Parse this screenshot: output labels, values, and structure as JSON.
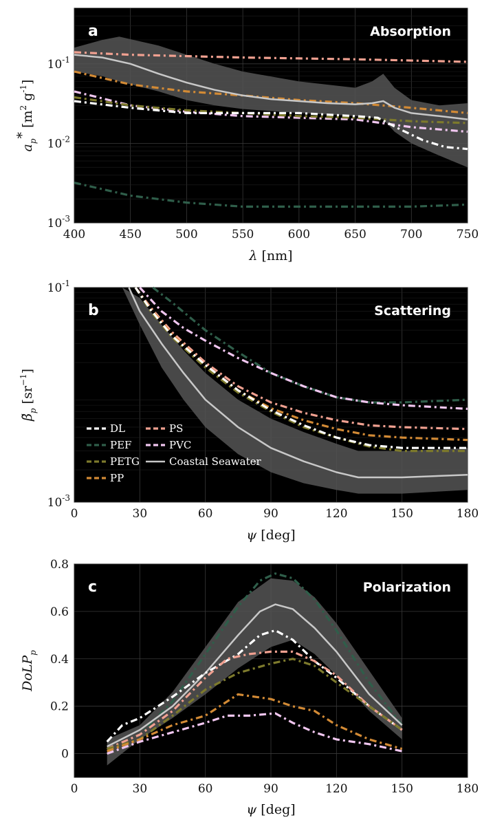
{
  "colors": {
    "DL": "#ffffff",
    "PEF": "#2f5e4a",
    "PETG": "#7d7a2c",
    "PP": "#d28a35",
    "PS": "#f0a090",
    "PVC": "#f0c6ef",
    "Coastal Seawater": "#c8c8c8",
    "band": "#555555"
  },
  "chart_data": [
    {
      "panel": "a",
      "type": "line",
      "title": "Absorption",
      "xlabel": "λ [nm]",
      "ylabel": "a*p [m2 g-1]",
      "yscale": "log",
      "xlim": [
        400,
        750
      ],
      "ylim": [
        0.001,
        0.5
      ],
      "xticks": [
        "400",
        "450",
        "500",
        "550",
        "600",
        "650",
        "700",
        "750"
      ],
      "yticks": [
        "10-3",
        "10-2",
        "10-1"
      ],
      "series": [
        {
          "name": "PS",
          "x": [
            400,
            450,
            500,
            550,
            600,
            650,
            700,
            750
          ],
          "y": [
            0.14,
            0.13,
            0.125,
            0.12,
            0.117,
            0.114,
            0.11,
            0.106
          ]
        },
        {
          "name": "PP",
          "x": [
            400,
            450,
            500,
            550,
            600,
            650,
            700,
            750
          ],
          "y": [
            0.08,
            0.055,
            0.045,
            0.04,
            0.035,
            0.032,
            0.028,
            0.024
          ]
        },
        {
          "name": "PVC",
          "x": [
            400,
            450,
            500,
            550,
            600,
            650,
            700,
            750
          ],
          "y": [
            0.045,
            0.03,
            0.025,
            0.022,
            0.021,
            0.02,
            0.016,
            0.014
          ]
        },
        {
          "name": "PETG",
          "x": [
            400,
            450,
            500,
            550,
            600,
            650,
            700,
            750
          ],
          "y": [
            0.038,
            0.03,
            0.026,
            0.024,
            0.022,
            0.021,
            0.019,
            0.018
          ]
        },
        {
          "name": "DL",
          "x": [
            400,
            450,
            500,
            550,
            600,
            650,
            670,
            690,
            710,
            730,
            750
          ],
          "y": [
            0.034,
            0.028,
            0.024,
            0.024,
            0.024,
            0.022,
            0.021,
            0.015,
            0.011,
            0.009,
            0.0085
          ]
        },
        {
          "name": "PEF",
          "x": [
            400,
            450,
            500,
            550,
            600,
            650,
            700,
            750
          ],
          "y": [
            0.0032,
            0.0022,
            0.0018,
            0.0016,
            0.0016,
            0.0016,
            0.0016,
            0.0017
          ]
        },
        {
          "name": "Coastal Seawater",
          "x": [
            400,
            425,
            450,
            475,
            500,
            525,
            550,
            575,
            600,
            625,
            650,
            665,
            675,
            685,
            700,
            725,
            750
          ],
          "y": [
            0.13,
            0.12,
            0.1,
            0.075,
            0.058,
            0.047,
            0.04,
            0.036,
            0.034,
            0.032,
            0.031,
            0.032,
            0.034,
            0.028,
            0.024,
            0.022,
            0.02
          ]
        }
      ],
      "band": {
        "x": [
          400,
          425,
          440,
          475,
          500,
          525,
          550,
          600,
          650,
          665,
          675,
          685,
          700,
          725,
          750
        ],
        "upper": [
          0.16,
          0.2,
          0.22,
          0.17,
          0.13,
          0.1,
          0.08,
          0.06,
          0.05,
          0.06,
          0.075,
          0.05,
          0.035,
          0.03,
          0.032
        ],
        "lower": [
          0.08,
          0.07,
          0.06,
          0.045,
          0.035,
          0.03,
          0.027,
          0.024,
          0.022,
          0.021,
          0.02,
          0.014,
          0.01,
          0.007,
          0.005
        ]
      }
    },
    {
      "panel": "b",
      "type": "line",
      "title": "Scattering",
      "xlabel": "ψ [deg]",
      "ylabel": "β̃p [sr-1]",
      "yscale": "log",
      "xlim": [
        0,
        180
      ],
      "ylim": [
        0.001,
        0.1
      ],
      "xticks": [
        "0",
        "30",
        "60",
        "90",
        "120",
        "150",
        "180"
      ],
      "yticks": [
        "10-3",
        "10-1"
      ],
      "legend": {
        "placement": "lower-left",
        "entries": [
          "DL",
          "PEF",
          "PETG",
          "PP",
          "PS",
          "PVC",
          "Coastal Seawater"
        ]
      },
      "series": [
        {
          "name": "PEF",
          "x": [
            36,
            45,
            60,
            75,
            90,
            105,
            120,
            135,
            150,
            180
          ],
          "y": [
            0.1,
            0.072,
            0.04,
            0.025,
            0.016,
            0.012,
            0.0095,
            0.0085,
            0.0085,
            0.009
          ]
        },
        {
          "name": "PVC",
          "x": [
            30,
            40,
            50,
            60,
            75,
            90,
            105,
            120,
            135,
            150,
            180
          ],
          "y": [
            0.1,
            0.06,
            0.042,
            0.032,
            0.022,
            0.016,
            0.012,
            0.0095,
            0.0085,
            0.008,
            0.0074
          ]
        },
        {
          "name": "PS",
          "x": [
            28,
            35,
            45,
            60,
            75,
            90,
            105,
            120,
            135,
            150,
            180
          ],
          "y": [
            0.1,
            0.065,
            0.038,
            0.02,
            0.012,
            0.0085,
            0.0068,
            0.0058,
            0.0052,
            0.005,
            0.0048
          ]
        },
        {
          "name": "PP",
          "x": [
            28,
            35,
            45,
            60,
            75,
            90,
            105,
            120,
            135,
            150,
            180
          ],
          "y": [
            0.1,
            0.063,
            0.036,
            0.019,
            0.011,
            0.0075,
            0.0058,
            0.0048,
            0.0042,
            0.004,
            0.0038
          ]
        },
        {
          "name": "PETG",
          "x": [
            28,
            35,
            45,
            60,
            75,
            90,
            105,
            120,
            135,
            150,
            180
          ],
          "y": [
            0.1,
            0.06,
            0.034,
            0.018,
            0.0105,
            0.007,
            0.005,
            0.004,
            0.0033,
            0.003,
            0.003
          ]
        },
        {
          "name": "DL",
          "x": [
            28,
            35,
            45,
            60,
            75,
            90,
            105,
            120,
            135,
            150,
            180
          ],
          "y": [
            0.1,
            0.062,
            0.035,
            0.019,
            0.011,
            0.0072,
            0.0052,
            0.004,
            0.0034,
            0.0032,
            0.0032
          ]
        },
        {
          "name": "Coastal Seawater",
          "x": [
            25,
            30,
            40,
            50,
            60,
            75,
            90,
            105,
            120,
            130,
            150,
            180
          ],
          "y": [
            0.1,
            0.06,
            0.03,
            0.016,
            0.009,
            0.005,
            0.0032,
            0.0024,
            0.0019,
            0.0017,
            0.0017,
            0.0018
          ]
        }
      ],
      "band": {
        "x": [
          22,
          30,
          40,
          50,
          60,
          75,
          90,
          105,
          120,
          130,
          150,
          180
        ],
        "upper": [
          0.1,
          0.08,
          0.045,
          0.026,
          0.016,
          0.009,
          0.006,
          0.0045,
          0.0035,
          0.003,
          0.003,
          0.0032
        ],
        "lower": [
          0.1,
          0.045,
          0.018,
          0.009,
          0.005,
          0.0028,
          0.0019,
          0.0015,
          0.0013,
          0.0012,
          0.0012,
          0.0013
        ]
      }
    },
    {
      "panel": "c",
      "type": "line",
      "title": "Polarization",
      "xlabel": "ψ [deg]",
      "ylabel": "DoLPp",
      "xlim": [
        0,
        180
      ],
      "ylim": [
        -0.1,
        0.8
      ],
      "xticks": [
        "0",
        "30",
        "60",
        "90",
        "120",
        "150",
        "180"
      ],
      "yticks": [
        "0",
        "0.2",
        "0.4",
        "0.6",
        "0.8"
      ],
      "series": [
        {
          "name": "PEF",
          "x": [
            15,
            30,
            45,
            60,
            75,
            85,
            92,
            100,
            110,
            120,
            135,
            150
          ],
          "y": [
            0.02,
            0.08,
            0.22,
            0.42,
            0.62,
            0.73,
            0.76,
            0.74,
            0.65,
            0.52,
            0.3,
            0.12
          ]
        },
        {
          "name": "Coastal Seawater",
          "x": [
            15,
            30,
            45,
            60,
            75,
            85,
            92,
            100,
            110,
            120,
            135,
            150
          ],
          "y": [
            0.03,
            0.1,
            0.2,
            0.34,
            0.5,
            0.6,
            0.63,
            0.61,
            0.53,
            0.43,
            0.25,
            0.12
          ]
        },
        {
          "name": "DL",
          "x": [
            15,
            22,
            30,
            45,
            60,
            75,
            85,
            92,
            100,
            110,
            120,
            135,
            150
          ],
          "y": [
            0.05,
            0.12,
            0.15,
            0.24,
            0.34,
            0.42,
            0.5,
            0.52,
            0.48,
            0.39,
            0.32,
            0.2,
            0.1
          ]
        },
        {
          "name": "PS",
          "x": [
            15,
            30,
            45,
            60,
            70,
            80,
            90,
            100,
            110,
            120,
            135,
            150
          ],
          "y": [
            0.02,
            0.08,
            0.18,
            0.32,
            0.4,
            0.42,
            0.43,
            0.43,
            0.39,
            0.33,
            0.2,
            0.1
          ]
        },
        {
          "name": "PETG",
          "x": [
            15,
            30,
            45,
            60,
            75,
            90,
            100,
            110,
            120,
            135,
            150
          ],
          "y": [
            0.02,
            0.06,
            0.16,
            0.27,
            0.34,
            0.38,
            0.4,
            0.37,
            0.3,
            0.2,
            0.1
          ]
        },
        {
          "name": "PP",
          "x": [
            15,
            30,
            45,
            60,
            75,
            90,
            100,
            110,
            120,
            135,
            150
          ],
          "y": [
            0.01,
            0.06,
            0.12,
            0.16,
            0.25,
            0.23,
            0.2,
            0.18,
            0.12,
            0.06,
            0.02
          ]
        },
        {
          "name": "PVC",
          "x": [
            15,
            30,
            45,
            60,
            70,
            80,
            92,
            100,
            110,
            120,
            135,
            150
          ],
          "y": [
            0.0,
            0.05,
            0.09,
            0.13,
            0.16,
            0.16,
            0.17,
            0.13,
            0.09,
            0.06,
            0.04,
            0.01
          ]
        }
      ],
      "band": {
        "x": [
          15,
          30,
          45,
          60,
          75,
          90,
          100,
          110,
          120,
          135,
          150
        ],
        "upper": [
          0.06,
          0.12,
          0.26,
          0.45,
          0.64,
          0.74,
          0.73,
          0.66,
          0.55,
          0.35,
          0.15
        ],
        "lower": [
          -0.05,
          0.06,
          0.15,
          0.25,
          0.36,
          0.45,
          0.48,
          0.42,
          0.33,
          0.18,
          0.06
        ]
      }
    }
  ]
}
